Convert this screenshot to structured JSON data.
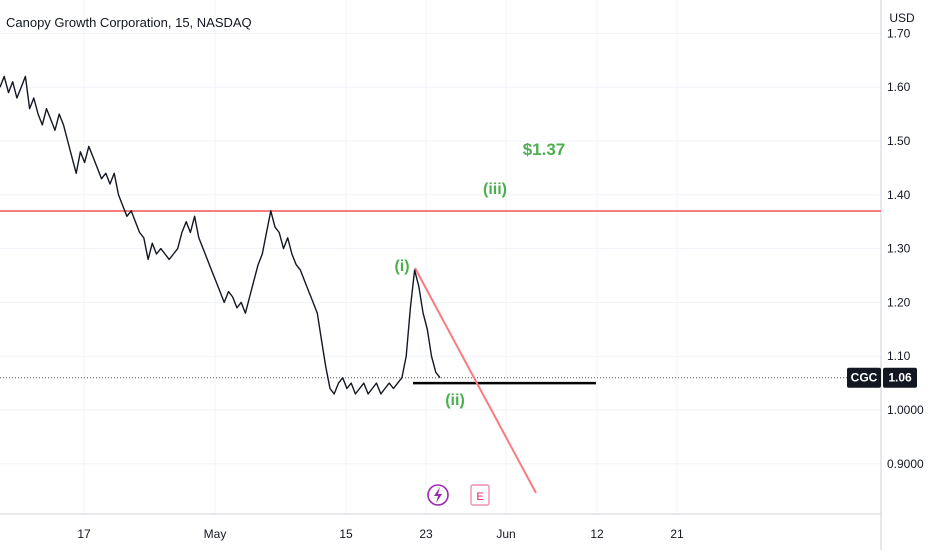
{
  "header": {
    "title": "Canopy Growth Corporation, 15, NASDAQ"
  },
  "chart_data": {
    "type": "line",
    "title": "Canopy Growth Corporation, 15, NASDAQ",
    "currency": "USD",
    "xlabel": "",
    "ylabel": "",
    "ylim": [
      0.83,
      1.73
    ],
    "grid": true,
    "x_ticks": [
      "17",
      "May",
      "15",
      "23",
      "Jun",
      "12",
      "21"
    ],
    "y_ticks": [
      "1.70",
      "1.60",
      "1.50",
      "1.40",
      "1.30",
      "1.20",
      "1.10",
      "1.0000",
      "0.9000"
    ],
    "series": [
      {
        "values": [
          1.6,
          1.62,
          1.59,
          1.61,
          1.58,
          1.6,
          1.62,
          1.56,
          1.58,
          1.55,
          1.53,
          1.56,
          1.54,
          1.52,
          1.55,
          1.53,
          1.5,
          1.47,
          1.44,
          1.48,
          1.46,
          1.49,
          1.47,
          1.45,
          1.43,
          1.44,
          1.42,
          1.44,
          1.4,
          1.38,
          1.36,
          1.37,
          1.35,
          1.33,
          1.32,
          1.28,
          1.31,
          1.29,
          1.3,
          1.29,
          1.28,
          1.29,
          1.3,
          1.33,
          1.35,
          1.33,
          1.36,
          1.32,
          1.3,
          1.28,
          1.26,
          1.24,
          1.22,
          1.2,
          1.22,
          1.21,
          1.19,
          1.2,
          1.18,
          1.21,
          1.24,
          1.27,
          1.29,
          1.33,
          1.37,
          1.34,
          1.33,
          1.3,
          1.32,
          1.29,
          1.27,
          1.26,
          1.24,
          1.22,
          1.2,
          1.18,
          1.13,
          1.08,
          1.04,
          1.03,
          1.05,
          1.06,
          1.04,
          1.05,
          1.03,
          1.04,
          1.05,
          1.03,
          1.04,
          1.05,
          1.03,
          1.04,
          1.05,
          1.04,
          1.05,
          1.06,
          1.1,
          1.19,
          1.26,
          1.23,
          1.18,
          1.15,
          1.1,
          1.07,
          1.06
        ]
      }
    ],
    "last_price_tag": {
      "symbol": "CGC",
      "value": "1.06"
    },
    "annotations": [
      {
        "label": "$1.37",
        "color": "#4caf50"
      },
      {
        "label": "(iii)",
        "color": "#4caf50"
      },
      {
        "label": "(i)",
        "color": "#4caf50"
      },
      {
        "label": "(ii)",
        "color": "#4caf50"
      }
    ],
    "horizontal_lines": [
      {
        "value": 1.37,
        "color": "#f77c80"
      },
      {
        "value": 1.05,
        "color": "#000000"
      }
    ],
    "event_markers": [
      {
        "icon": "lightning-icon",
        "color": "#9c27b0"
      },
      {
        "label": "E",
        "color": "#e91e63"
      }
    ]
  }
}
